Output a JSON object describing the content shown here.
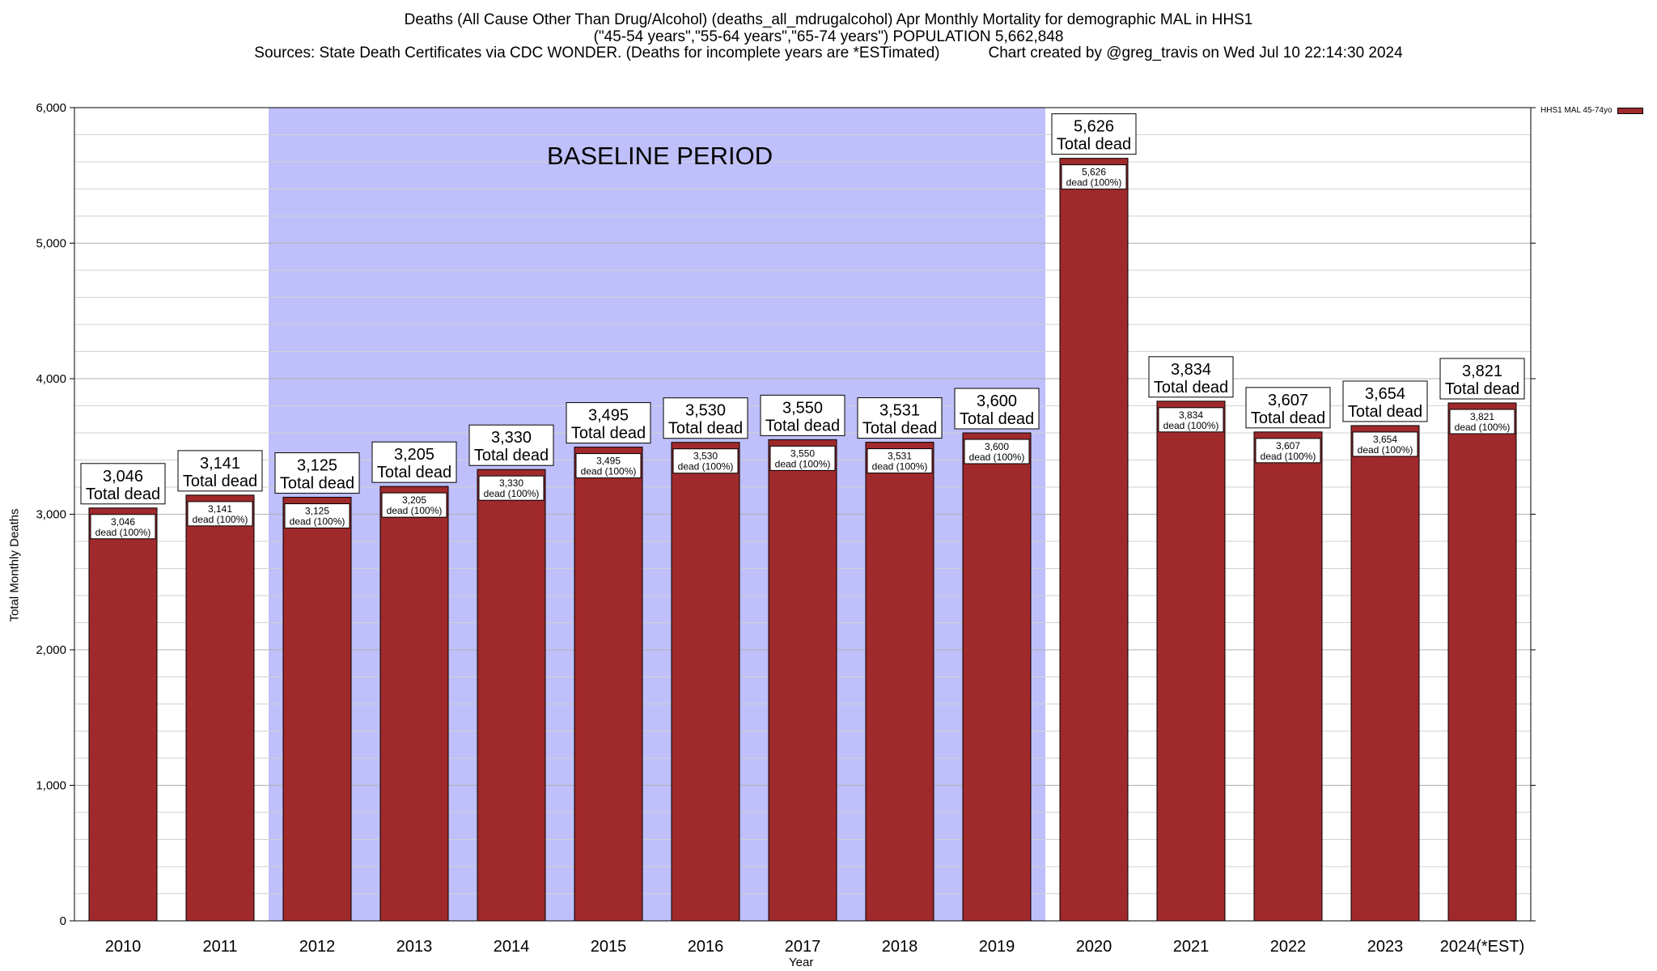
{
  "header": {
    "title_line1": "Deaths (All Cause Other Than Drug/Alcohol) (deaths_all_mdrugalcohol) Apr Monthly Mortality for demographic MAL in HHS1",
    "title_line2": "(\"45-54 years\",\"55-64 years\",\"65-74 years\") POPULATION 5,662,848",
    "sources": "Sources: State Death Certificates via CDC WONDER. (Deaths for incomplete years are *ESTimated)",
    "credit": "Chart created by @greg_travis on Wed Jul 10 22:14:30 2024"
  },
  "legend": {
    "label": "HHS1 MAL 45-74yo",
    "color": "#a0292b"
  },
  "colors": {
    "bar": "#a0292b",
    "baseline": "#bfbffb",
    "label_bg": "#ffffff"
  },
  "chart_data": {
    "type": "bar",
    "xlabel": "Year",
    "ylabel": "Total Monthly Deaths",
    "ylim": [
      0,
      6000
    ],
    "yticks": [
      0,
      1000,
      2000,
      3000,
      4000,
      5000,
      6000
    ],
    "ytick_labels": [
      "0",
      "1,000",
      "2,000",
      "3,000",
      "4,000",
      "5,000",
      "6,000"
    ],
    "grid": true,
    "legend_position": "top-right",
    "categories": [
      "2010",
      "2011",
      "2012",
      "2013",
      "2014",
      "2015",
      "2016",
      "2017",
      "2018",
      "2019",
      "2020",
      "2021",
      "2022",
      "2023",
      "2024(*EST)"
    ],
    "series": [
      {
        "name": "HHS1 MAL 45-74yo",
        "values": [
          3046,
          3141,
          3125,
          3205,
          3330,
          3495,
          3530,
          3550,
          3531,
          3600,
          5626,
          3834,
          3607,
          3654,
          3821
        ]
      }
    ],
    "value_labels": [
      "3,046",
      "3,141",
      "3,125",
      "3,205",
      "3,330",
      "3,495",
      "3,530",
      "3,550",
      "3,531",
      "3,600",
      "5,626",
      "3,834",
      "3,607",
      "3,654",
      "3,821"
    ],
    "total_label": "Total dead",
    "inner_label": "dead (100%)",
    "baseline_period": {
      "label": "BASELINE PERIOD",
      "start": "2012",
      "end": "2019"
    }
  }
}
